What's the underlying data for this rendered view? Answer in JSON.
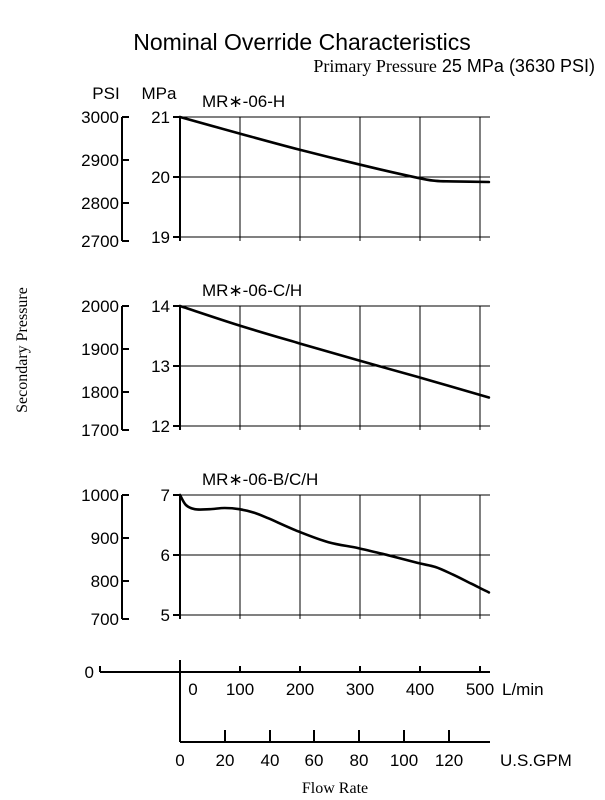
{
  "chart_data": {
    "type": "line",
    "title": "Nominal Override Characteristics",
    "subtitle": "Primary Pressure 25 MPa (3630 PSI)",
    "subtitle_prefix": "Primary Pressure",
    "subtitle_value": "25 MPa (3630 PSI)",
    "ylabel": "Secondary Pressure",
    "xlabel": "Flow Rate",
    "x_unit_lpm": "L/min",
    "x_unit_gpm": "U.S.GPM",
    "psi_unit": "PSI",
    "mpa_unit": "MPa",
    "bottom_zero": "0",
    "x_ticks_lpm": [
      "0",
      "100",
      "200",
      "300",
      "400",
      "500"
    ],
    "x_ticks_gpm": [
      "0",
      "20",
      "40",
      "60",
      "80",
      "100",
      "120"
    ],
    "xlim_lpm": [
      0,
      520
    ],
    "grid": true,
    "panels": [
      {
        "name": "MR∗-06-H",
        "mpa_ticks": [
          "21",
          "20",
          "19"
        ],
        "psi_ticks": [
          "3000",
          "2900",
          "2800",
          "2700"
        ],
        "ylim_mpa": [
          18.9,
          21.0
        ],
        "series": [
          {
            "x": [
              0,
              100,
              200,
              300,
              400,
              430,
              460,
              520
            ],
            "y": [
              21.0,
              20.72,
              20.45,
              20.2,
              19.97,
              19.92,
              19.91,
              19.9
            ]
          }
        ]
      },
      {
        "name": "MR∗-06-C/H",
        "mpa_ticks": [
          "14",
          "13",
          "12"
        ],
        "psi_ticks": [
          "2000",
          "1900",
          "1800",
          "1700"
        ],
        "ylim_mpa": [
          11.9,
          14.0
        ],
        "series": [
          {
            "x": [
              0,
              100,
              200,
              300,
              400,
              520
            ],
            "y": [
              14.0,
              13.67,
              13.37,
              13.08,
              12.8,
              12.45
            ]
          }
        ]
      },
      {
        "name": "MR∗-06-B/C/H",
        "mpa_ticks": [
          "7",
          "6",
          "5"
        ],
        "psi_ticks": [
          "1000",
          "900",
          "800",
          "700"
        ],
        "ylim_mpa": [
          4.9,
          7.0
        ],
        "series": [
          {
            "x": [
              0,
              10,
              25,
              50,
              75,
              100,
              125,
              150,
              200,
              250,
              300,
              350,
              400,
              430,
              460,
              490,
              520
            ],
            "y": [
              7.0,
              6.83,
              6.76,
              6.76,
              6.78,
              6.76,
              6.7,
              6.6,
              6.38,
              6.2,
              6.1,
              5.98,
              5.85,
              5.78,
              5.65,
              5.5,
              5.35
            ]
          }
        ]
      }
    ]
  }
}
